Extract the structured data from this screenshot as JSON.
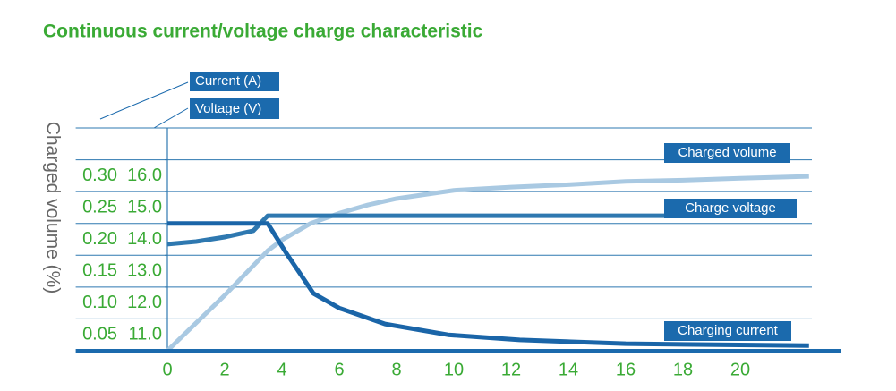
{
  "chart_data": {
    "type": "line",
    "title": "Continuous current/voltage charge characteristic",
    "ylabel": "Current (A)",
    "y2label": "Voltage (V)",
    "volume_label": "Charged volume (%)",
    "xlim": [
      -3.2,
      22.5
    ],
    "xticks": [
      0,
      2,
      4,
      6,
      8,
      10,
      12,
      14,
      16,
      18,
      20
    ],
    "ylim": [
      0,
      0.35
    ],
    "yticks": [
      0.05,
      {
        "value": 0.1,
        "label": "0.10"
      },
      0.15,
      {
        "value": 0.2,
        "label": "0.20"
      },
      0.25,
      {
        "value": 0.3,
        "label": "0.30"
      }
    ],
    "y2lim": [
      10,
      17
    ],
    "y2ticks": [
      {
        "value": 11,
        "label": "11.0"
      },
      {
        "value": 12,
        "label": "12.0"
      },
      {
        "value": 13,
        "label": "13.0"
      },
      {
        "value": 14,
        "label": "14.0"
      },
      {
        "value": 15,
        "label": "15.0"
      },
      {
        "value": 16,
        "label": "16.0"
      }
    ],
    "grid": true,
    "label_color": "#1b6aad",
    "series": [
      {
        "name": "Charged volume",
        "color": "#a9c9e2",
        "x": [
          0,
          2,
          3.5,
          4,
          5,
          6,
          7,
          8,
          10,
          12,
          14,
          16,
          18,
          20,
          22.4
        ],
        "values": [
          0,
          0.087,
          0.157,
          0.174,
          0.2,
          0.216,
          0.229,
          0.239,
          0.252,
          0.257,
          0.261,
          0.266,
          0.268,
          0.271,
          0.274
        ]
      },
      {
        "name": "Charge voltage",
        "color": "#2e78b0",
        "axis": "y2",
        "x": [
          0,
          1,
          2,
          3,
          3.5,
          17.5
        ],
        "values": [
          13.35,
          13.43,
          13.57,
          13.77,
          14.24,
          14.24
        ]
      },
      {
        "name": "Charging current",
        "color": "#1a65a8",
        "x": [
          0,
          3.5,
          4.2,
          5.1,
          6.0,
          7.6,
          9.8,
          12.3,
          16,
          22.4
        ],
        "values": [
          0.2,
          0.2,
          0.15,
          0.09,
          0.067,
          0.042,
          0.025,
          0.017,
          0.011,
          0.008
        ]
      }
    ]
  }
}
